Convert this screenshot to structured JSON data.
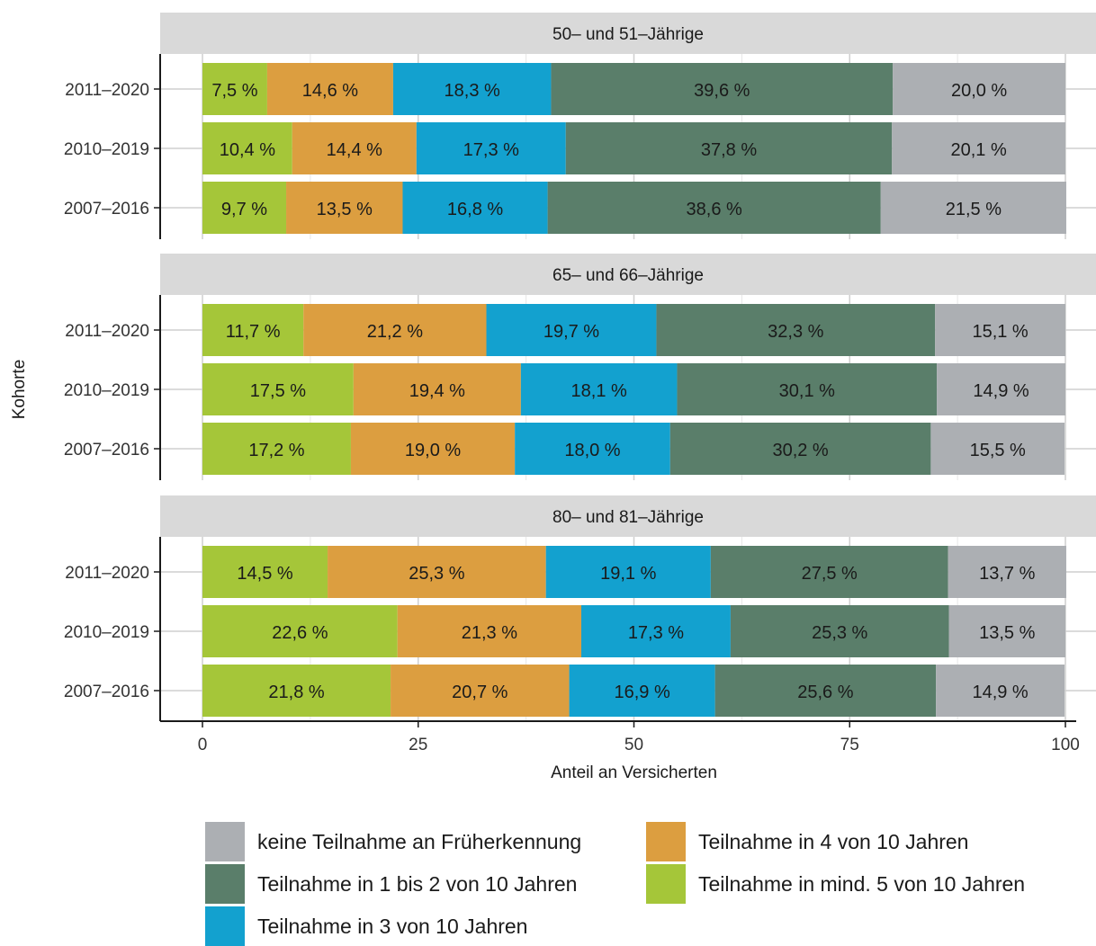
{
  "chart_data": {
    "type": "bar",
    "orientation": "horizontal",
    "stacked": true,
    "xlabel": "Anteil an Versicherten",
    "ylabel": "Kohorte",
    "xlim": [
      0,
      100
    ],
    "xticks": [
      "0",
      "25",
      "50",
      "75",
      "100"
    ],
    "categories": [
      "2011–2020",
      "2010–2019",
      "2007–2016"
    ],
    "series": [
      {
        "name": "Teilnahme in mind. 5 von 10 Jahren",
        "color": "#a5c639"
      },
      {
        "name": "Teilnahme in 4 von 10 Jahren",
        "color": "#dc9e40"
      },
      {
        "name": "Teilnahme in 3 von 10 Jahren",
        "color": "#13a1cf"
      },
      {
        "name": "Teilnahme in 1 bis 2 von 10 Jahren",
        "color": "#5a7e6a"
      },
      {
        "name": "keine Teilnahme an Früherkennung",
        "color": "#acafb3"
      }
    ],
    "panels": [
      {
        "title": "50– und 51–Jährige",
        "values": [
          [
            7.5,
            14.6,
            18.3,
            39.6,
            20.0
          ],
          [
            10.4,
            14.4,
            17.3,
            37.8,
            20.1
          ],
          [
            9.7,
            13.5,
            16.8,
            38.6,
            21.5
          ]
        ],
        "labels": [
          [
            "7,5 %",
            "14,6 %",
            "18,3 %",
            "39,6 %",
            "20,0 %"
          ],
          [
            "10,4 %",
            "14,4 %",
            "17,3 %",
            "37,8 %",
            "20,1 %"
          ],
          [
            "9,7 %",
            "13,5 %",
            "16,8 %",
            "38,6 %",
            "21,5 %"
          ]
        ]
      },
      {
        "title": "65– und 66–Jährige",
        "values": [
          [
            11.7,
            21.2,
            19.7,
            32.3,
            15.1
          ],
          [
            17.5,
            19.4,
            18.1,
            30.1,
            14.9
          ],
          [
            17.2,
            19.0,
            18.0,
            30.2,
            15.5
          ]
        ],
        "labels": [
          [
            "11,7 %",
            "21,2 %",
            "19,7 %",
            "32,3 %",
            "15,1 %"
          ],
          [
            "17,5 %",
            "19,4 %",
            "18,1 %",
            "30,1 %",
            "14,9 %"
          ],
          [
            "17,2 %",
            "19,0 %",
            "18,0 %",
            "30,2 %",
            "15,5 %"
          ]
        ]
      },
      {
        "title": "80– und 81–Jährige",
        "values": [
          [
            14.5,
            25.3,
            19.1,
            27.5,
            13.7
          ],
          [
            22.6,
            21.3,
            17.3,
            25.3,
            13.5
          ],
          [
            21.8,
            20.7,
            16.9,
            25.6,
            14.9
          ]
        ],
        "labels": [
          [
            "14,5 %",
            "25,3 %",
            "19,1 %",
            "27,5 %",
            "13,7 %"
          ],
          [
            "22,6 %",
            "21,3 %",
            "17,3 %",
            "25,3 %",
            "13,5 %"
          ],
          [
            "21,8 %",
            "20,7 %",
            "16,9 %",
            "25,6 %",
            "14,9 %"
          ]
        ]
      }
    ],
    "legend": {
      "position": "bottom",
      "items": [
        {
          "label": "keine Teilnahme an Früherkennung",
          "color": "#acafb3"
        },
        {
          "label": "Teilnahme in 4 von 10 Jahren",
          "color": "#dc9e40"
        },
        {
          "label": "Teilnahme in 1 bis 2 von 10 Jahren",
          "color": "#5a7e6a"
        },
        {
          "label": "Teilnahme in mind. 5 von 10 Jahren",
          "color": "#a5c639"
        },
        {
          "label": "Teilnahme in 3 von 10 Jahren",
          "color": "#13a1cf"
        }
      ]
    },
    "grid": true,
    "strip_color": "#d9d9d9",
    "grid_color": "#cfcfcf"
  }
}
